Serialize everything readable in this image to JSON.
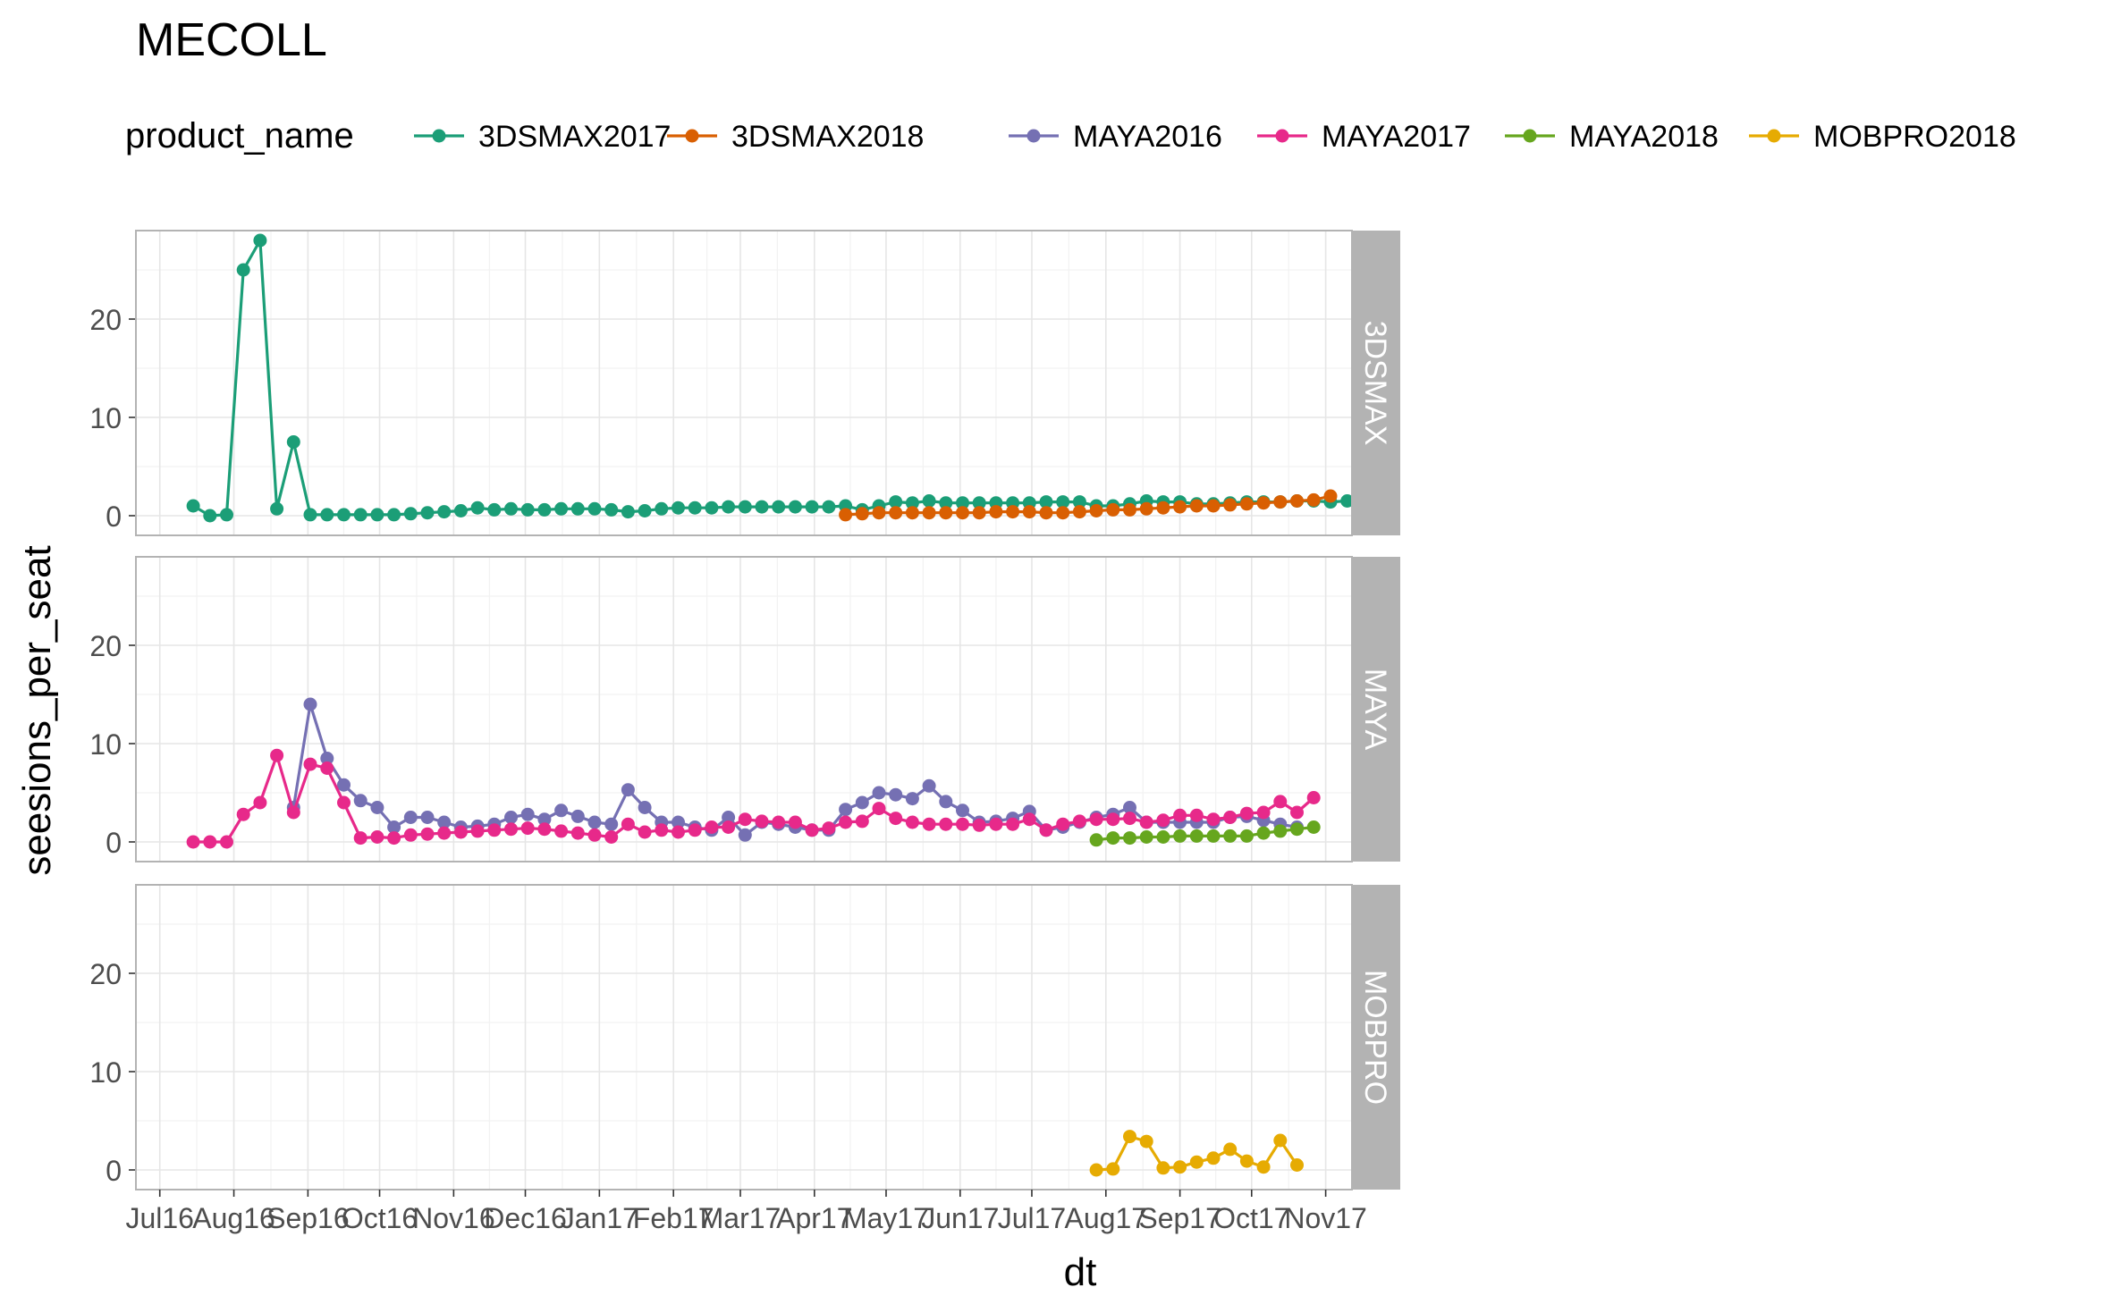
{
  "chart_data": {
    "type": "line",
    "title": "MECOLL",
    "xlabel": "dt",
    "ylabel": "seesions_per_seat",
    "legend_title": "product_name",
    "legend_position": "top",
    "grid": true,
    "ylim": [
      -2,
      29
    ],
    "y_ticks": [
      0,
      10,
      20
    ],
    "x_ticks": [
      "Jul16",
      "Aug16",
      "Sep16",
      "Oct16",
      "Nov16",
      "Dec16",
      "Jan17",
      "Feb17",
      "Mar17",
      "Apr17",
      "May17",
      "Jun17",
      "Jul17",
      "Aug17",
      "Sep17",
      "Oct17",
      "Nov17"
    ],
    "x_tick_dates": [
      "2016-07-01",
      "2016-08-01",
      "2016-09-01",
      "2016-10-01",
      "2016-11-01",
      "2016-12-01",
      "2017-01-01",
      "2017-02-01",
      "2017-03-01",
      "2017-04-01",
      "2017-05-01",
      "2017-06-01",
      "2017-07-01",
      "2017-08-01",
      "2017-09-01",
      "2017-10-01",
      "2017-11-01"
    ],
    "xlim": [
      "2016-06-21",
      "2017-11-12"
    ],
    "panels": [
      "3DSMAX",
      "MAYA",
      "MOBPRO"
    ],
    "series": [
      {
        "name": "3DSMAX2017",
        "panel": "3DSMAX",
        "color": "#1B9E77",
        "start_date": "2016-07-15",
        "step_days": 7,
        "values": [
          1.0,
          0.0,
          0.1,
          25.0,
          28.0,
          0.7,
          7.5,
          0.1,
          0.1,
          0.1,
          0.1,
          0.1,
          0.1,
          0.2,
          0.3,
          0.4,
          0.5,
          0.8,
          0.6,
          0.7,
          0.6,
          0.6,
          0.7,
          0.7,
          0.7,
          0.6,
          0.4,
          0.5,
          0.7,
          0.8,
          0.8,
          0.8,
          0.9,
          0.9,
          0.9,
          0.9,
          0.9,
          0.9,
          0.9,
          1.0,
          0.6,
          1.0,
          1.4,
          1.3,
          1.5,
          1.3,
          1.3,
          1.3,
          1.3,
          1.3,
          1.3,
          1.4,
          1.4,
          1.4,
          1.0,
          1.0,
          1.2,
          1.5,
          1.4,
          1.4,
          1.2,
          1.2,
          1.3,
          1.4,
          1.4,
          1.4,
          1.5,
          1.5,
          1.4,
          1.5
        ]
      },
      {
        "name": "3DSMAX2018",
        "panel": "3DSMAX",
        "color": "#D95F02",
        "start_date": "2017-04-14",
        "step_days": 7,
        "values": [
          0.1,
          0.2,
          0.3,
          0.3,
          0.3,
          0.3,
          0.3,
          0.3,
          0.3,
          0.4,
          0.4,
          0.4,
          0.3,
          0.3,
          0.4,
          0.5,
          0.6,
          0.6,
          0.7,
          0.8,
          0.9,
          1.0,
          1.0,
          1.1,
          1.2,
          1.3,
          1.4,
          1.5,
          1.6,
          2.0
        ]
      },
      {
        "name": "MAYA2016",
        "panel": "MAYA",
        "color": "#7570B3",
        "start_date": "2016-08-26",
        "step_days": 7,
        "values": [
          3.5,
          14.0,
          8.5,
          5.8,
          4.2,
          3.5,
          1.5,
          2.5,
          2.5,
          2.0,
          1.5,
          1.6,
          1.8,
          2.5,
          2.8,
          2.3,
          3.2,
          2.6,
          2.0,
          1.8,
          5.3,
          3.5,
          2.0,
          2.0,
          1.5,
          1.2,
          2.5,
          0.7,
          2.0,
          1.8,
          1.5,
          1.2,
          1.2,
          3.3,
          4.0,
          5.0,
          4.8,
          4.4,
          5.7,
          4.1,
          3.2,
          2.0,
          2.1,
          2.4,
          3.1,
          1.2,
          1.5,
          2.0,
          2.5,
          2.8,
          3.5,
          2.0,
          2.0,
          2.0,
          2.0,
          2.0,
          2.5,
          2.6,
          2.2,
          1.8,
          1.5
        ]
      },
      {
        "name": "MAYA2017",
        "panel": "MAYA",
        "color": "#E7298A",
        "start_date": "2016-07-15",
        "step_days": 7,
        "values": [
          0.0,
          0.0,
          0.0,
          2.8,
          4.0,
          8.8,
          3.0,
          7.9,
          7.5,
          4.0,
          0.4,
          0.5,
          0.4,
          0.7,
          0.8,
          0.9,
          1.0,
          1.1,
          1.2,
          1.3,
          1.4,
          1.3,
          1.1,
          0.9,
          0.7,
          0.5,
          1.8,
          1.0,
          1.2,
          1.0,
          1.2,
          1.5,
          1.5,
          2.3,
          2.1,
          2.0,
          2.0,
          1.2,
          1.4,
          2.0,
          2.1,
          3.4,
          2.4,
          2.0,
          1.8,
          1.8,
          1.8,
          1.7,
          1.8,
          1.8,
          2.3,
          1.2,
          1.8,
          2.1,
          2.3,
          2.3,
          2.4,
          2.0,
          2.2,
          2.7,
          2.7,
          2.3,
          2.5,
          2.9,
          3.0,
          4.1,
          3.0,
          4.5
        ]
      },
      {
        "name": "MAYA2018",
        "panel": "MAYA",
        "color": "#66A61E",
        "start_date": "2017-07-28",
        "step_days": 7,
        "values": [
          0.2,
          0.4,
          0.4,
          0.5,
          0.5,
          0.6,
          0.6,
          0.6,
          0.6,
          0.6,
          0.9,
          1.1,
          1.3,
          1.5
        ]
      },
      {
        "name": "MOBPRO2018",
        "panel": "MOBPRO",
        "color": "#E6AB02",
        "start_date": "2017-07-28",
        "step_days": 7,
        "values": [
          0.0,
          0.1,
          3.4,
          2.9,
          0.2,
          0.3,
          0.8,
          1.2,
          2.1,
          0.9,
          0.3,
          3.0,
          0.5
        ]
      }
    ]
  }
}
